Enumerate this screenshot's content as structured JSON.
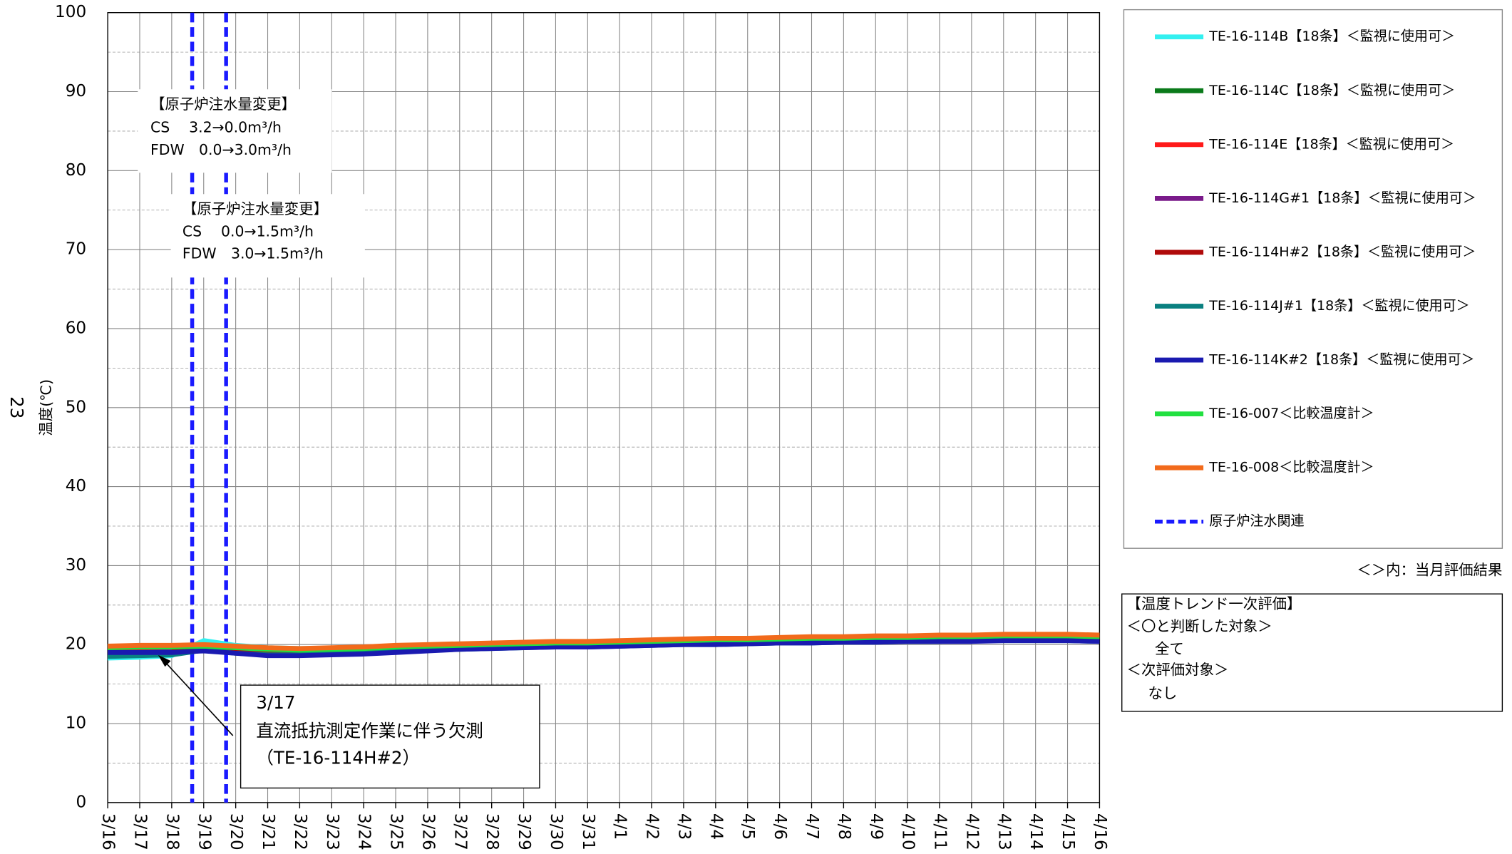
{
  "chart_data": {
    "type": "line",
    "page_number": "23",
    "y_label": "温度(℃)",
    "categories": [
      "3/16",
      "3/17",
      "3/18",
      "3/19",
      "3/20",
      "3/21",
      "3/22",
      "3/23",
      "3/24",
      "3/25",
      "3/26",
      "3/27",
      "3/28",
      "3/29",
      "3/30",
      "3/31",
      "4/1",
      "4/2",
      "4/3",
      "4/4",
      "4/5",
      "4/6",
      "4/7",
      "4/8",
      "4/9",
      "4/10",
      "4/11",
      "4/12",
      "4/13",
      "4/14",
      "4/15",
      "4/16"
    ],
    "ylim": [
      0,
      100
    ],
    "yticks": [
      0,
      10,
      20,
      30,
      40,
      50,
      60,
      70,
      80,
      90,
      100
    ],
    "grid": true,
    "series": [
      {
        "name": "TE-16-114B【18条】＜監視に使用可＞",
        "color": "#33f0f0",
        "values": [
          18.3,
          18.4,
          18.6,
          20.5,
          19.9,
          19.6,
          19.5,
          19.5,
          19.6,
          19.8,
          19.9,
          20.0,
          20.1,
          20.2,
          20.2,
          20.3,
          20.3,
          20.4,
          20.5,
          20.5,
          20.6,
          20.6,
          20.7,
          20.7,
          20.8,
          20.8,
          20.8,
          20.9,
          20.9,
          20.9,
          20.9,
          20.8
        ]
      },
      {
        "name": "TE-16-114C【18条】＜監視に使用可＞",
        "color": "#0a7a1a",
        "values": [
          18.6,
          18.7,
          18.8,
          19.4,
          19.0,
          18.8,
          18.8,
          18.9,
          19.0,
          19.2,
          19.4,
          19.5,
          19.6,
          19.7,
          19.8,
          19.8,
          19.9,
          20.0,
          20.1,
          20.1,
          20.2,
          20.3,
          20.3,
          20.4,
          20.4,
          20.5,
          20.5,
          20.6,
          20.6,
          20.6,
          20.6,
          20.5
        ]
      },
      {
        "name": "TE-16-114E【18条】＜監視に使用可＞",
        "color": "#ff1a1a",
        "values": [
          19.2,
          19.3,
          19.4,
          19.8,
          19.4,
          19.2,
          19.2,
          19.3,
          19.4,
          19.6,
          19.7,
          19.8,
          19.9,
          20.0,
          20.1,
          20.1,
          20.2,
          20.3,
          20.4,
          20.4,
          20.5,
          20.6,
          20.6,
          20.7,
          20.7,
          20.8,
          20.8,
          20.9,
          20.9,
          20.9,
          20.9,
          20.8
        ]
      },
      {
        "name": "TE-16-114G#1【18条】＜監視に使用可＞",
        "color": "#7a1a8a",
        "values": [
          18.9,
          19.0,
          19.1,
          19.5,
          19.1,
          18.9,
          18.9,
          19.0,
          19.1,
          19.3,
          19.5,
          19.6,
          19.7,
          19.8,
          19.9,
          19.9,
          20.0,
          20.1,
          20.2,
          20.2,
          20.3,
          20.4,
          20.4,
          20.5,
          20.5,
          20.6,
          20.6,
          20.7,
          20.7,
          20.7,
          20.7,
          20.6
        ]
      },
      {
        "name": "TE-16-114H#2【18条】＜監視に使用可＞",
        "color": "#b00a0a",
        "values": [
          19.1,
          null,
          19.3,
          19.7,
          19.3,
          19.1,
          19.1,
          19.2,
          19.3,
          19.5,
          19.6,
          19.7,
          19.8,
          19.9,
          20.0,
          20.0,
          20.1,
          20.2,
          20.3,
          20.3,
          20.4,
          20.5,
          20.5,
          20.6,
          20.6,
          20.7,
          20.7,
          20.8,
          20.8,
          20.8,
          20.8,
          20.7
        ]
      },
      {
        "name": "TE-16-114J#1【18条】＜監視に使用可＞",
        "color": "#0a8080",
        "values": [
          18.5,
          18.6,
          18.7,
          19.3,
          18.9,
          18.7,
          18.7,
          18.8,
          18.9,
          19.1,
          19.3,
          19.4,
          19.5,
          19.6,
          19.7,
          19.7,
          19.8,
          19.9,
          20.0,
          20.0,
          20.1,
          20.2,
          20.2,
          20.3,
          20.3,
          20.4,
          20.4,
          20.5,
          20.5,
          20.5,
          20.5,
          20.4
        ]
      },
      {
        "name": "TE-16-114K#2【18条】＜監視に使用可＞",
        "color": "#1a1ab0",
        "values": [
          19.0,
          19.0,
          19.0,
          19.2,
          18.9,
          18.6,
          18.6,
          18.7,
          18.8,
          19.0,
          19.2,
          19.4,
          19.5,
          19.6,
          19.7,
          19.7,
          19.8,
          19.9,
          20.0,
          20.0,
          20.1,
          20.2,
          20.2,
          20.3,
          20.3,
          20.4,
          20.4,
          20.4,
          20.5,
          20.5,
          20.5,
          20.4
        ]
      },
      {
        "name": "TE-16-007＜比較温度計＞",
        "color": "#22e040",
        "values": [
          19.6,
          19.7,
          19.7,
          19.8,
          19.6,
          19.4,
          19.3,
          19.4,
          19.5,
          19.7,
          19.8,
          19.9,
          20.0,
          20.1,
          20.2,
          20.2,
          20.3,
          20.4,
          20.5,
          20.6,
          20.6,
          20.7,
          20.8,
          20.8,
          20.9,
          20.9,
          21.0,
          21.0,
          21.1,
          21.1,
          21.1,
          21.0
        ]
      },
      {
        "name": "TE-16-008＜比較温度計＞",
        "color": "#f26a1b",
        "values": [
          19.8,
          19.9,
          19.9,
          20.0,
          19.8,
          19.6,
          19.5,
          19.6,
          19.7,
          19.9,
          20.0,
          20.1,
          20.2,
          20.3,
          20.4,
          20.4,
          20.5,
          20.6,
          20.7,
          20.8,
          20.8,
          20.9,
          21.0,
          21.0,
          21.1,
          21.1,
          21.2,
          21.2,
          21.3,
          21.3,
          21.3,
          21.2
        ]
      }
    ],
    "event_series": {
      "name": "原子炉注水関連",
      "color": "#1a1aff",
      "dashed": true,
      "x_positions": [
        2.64,
        3.7
      ]
    },
    "annotations": [
      {
        "lines": [
          "【原子炉注水量変更】",
          "CS　 3.2→0.0m³/h",
          "FDW　0.0→3.0m³/h"
        ]
      },
      {
        "lines": [
          "【原子炉注水量変更】",
          "CS　 0.0→1.5m³/h",
          "FDW　3.0→1.5m³/h"
        ]
      },
      {
        "lines": [
          "3/17",
          "直流抵抗測定作業に伴う欠測",
          "（TE-16-114H#2）"
        ]
      }
    ],
    "legend_note": "＜＞内：当月評価結果",
    "evaluation": {
      "title": "【温度トレンド一次評価】",
      "lines": [
        "＜〇と判断した対象＞",
        "全て",
        "＜次評価対象＞",
        "なし"
      ]
    }
  }
}
